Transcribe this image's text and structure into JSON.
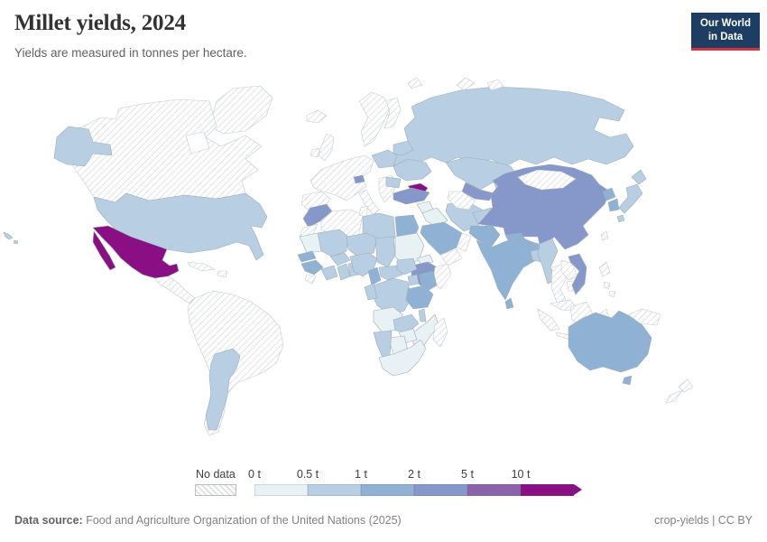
{
  "header": {
    "title": "Millet yields, 2024",
    "subtitle": "Yields are measured in tonnes per hectare.",
    "logo": {
      "line1": "Our World",
      "line2": "in Data"
    }
  },
  "legend": {
    "no_data_label": "No data"
  },
  "footer": {
    "source_label": "Data source:",
    "source_text": " Food and Agriculture Organization of the United Nations (2025)",
    "right_text": "crop-yields | CC BY"
  },
  "colors": {
    "logo_background": "#1d3d63",
    "logo_accent_red": "#d0353f",
    "country_border": "#9fadb9",
    "no_data_hatch_line": "#d9dcde"
  },
  "chart_data": {
    "type": "heatmap",
    "subtype": "choropleth-world-map",
    "title": "Millet yields, 2024",
    "unit": "tonnes per hectare",
    "year": "2024",
    "legend_position": "bottom",
    "bins": [
      {
        "key": "0-0.5",
        "label": "0 t",
        "color": "#e8f1f4"
      },
      {
        "key": "0.5-1",
        "label": "0.5 t",
        "color": "#b7cee3"
      },
      {
        "key": "1-2",
        "label": "1 t",
        "color": "#8fb2d4"
      },
      {
        "key": "2-5",
        "label": "2 t",
        "color": "#8598c9"
      },
      {
        "key": "5-10",
        "label": "5 t",
        "color": "#8b63aa"
      },
      {
        "key": "10+",
        "label": "10 t",
        "color": "#8a0f84"
      }
    ],
    "no_data_key": "no-data",
    "countries": {
      "greenland": "no-data",
      "iceland": "no-data",
      "canada": "no-data",
      "united_states": "0.5-1",
      "mexico": "10+",
      "cuba": "no-data",
      "hispaniola": "no-data",
      "central_america": "no-data",
      "south_america": "no-data",
      "argentina": "0.5-1",
      "united_kingdom": "no-data",
      "ireland": "no-data",
      "scandinavia": "no-data",
      "finland": "no-data",
      "western_europe": "no-data",
      "iberia": "no-data",
      "italy": "no-data",
      "balkans": "no-data",
      "poland": "0.5-1",
      "belarus": "0.5-1",
      "ukraine": "0.5-1",
      "romania": "0.5-1",
      "switzerland": "2-5",
      "russia": "0.5-1",
      "arctic_islands": "no-data",
      "svalbard": "no-data",
      "kazakhstan": "0.5-1",
      "uzbekistan": "2-5",
      "turkmenistan": "no-data",
      "kyrgyzstan": "0.5-1",
      "tajikistan": "0.5-1",
      "georgia": "10+",
      "armenia": "2-5",
      "turkey": "2-5",
      "syria": "0-0.5",
      "iraq": "0-0.5",
      "iran": "0.5-1",
      "saudi_arabia": "1-2",
      "yemen": "no-data",
      "oman": "no-data",
      "afghanistan": "0.5-1",
      "pakistan": "1-2",
      "india": "1-2",
      "nepal": "1-2",
      "bangladesh": "0.5-1",
      "sri_lanka": "1-2",
      "myanmar": "0.5-1",
      "thailand": "no-data",
      "laos": "no-data",
      "cambodia": "no-data",
      "vietnam": "2-5",
      "malaysia": "no-data",
      "indonesia": "no-data",
      "philippines": "no-data",
      "new_guinea": "no-data",
      "china": "2-5",
      "mongolia": "no-data",
      "north_korea": "1-2",
      "south_korea": "1-2",
      "japan": "0.5-1",
      "taiwan": "no-data",
      "australia": "1-2",
      "new_zealand": "no-data",
      "morocco": "2-5",
      "western_sahara": "no-data",
      "algeria": "no-data",
      "tunisia": "no-data",
      "libya": "0.5-1",
      "egypt": "1-2",
      "mauritania": "0-0.5",
      "senegal": "1-2",
      "guinea": "1-2",
      "sierra_leone_liberia": "no-data",
      "mali": "0.5-1",
      "burkina_faso": "0.5-1",
      "ivory_coast": "0.5-1",
      "ghana": "0.5-1",
      "togo_benin": "0.5-1",
      "niger": "0.5-1",
      "nigeria": "0.5-1",
      "chad": "0.5-1",
      "sudan": "0-0.5",
      "eritrea": "0-0.5",
      "ethiopia": "2-5",
      "somalia": "no-data",
      "cameroon": "1-2",
      "central_african_republic": "0.5-1",
      "south_sudan": "0.5-1",
      "drc": "0.5-1",
      "uganda": "0.5-1",
      "kenya": "1-2",
      "tanzania": "1-2",
      "gabon_congo": "0.5-1",
      "angola": "0-0.5",
      "zambia": "0.5-1",
      "malawi": "0.5-1",
      "mozambique": "0-0.5",
      "zimbabwe": "0-0.5",
      "botswana": "0-0.5",
      "namibia": "0.5-1",
      "south_africa": "0-0.5",
      "madagascar": "no-data"
    }
  }
}
